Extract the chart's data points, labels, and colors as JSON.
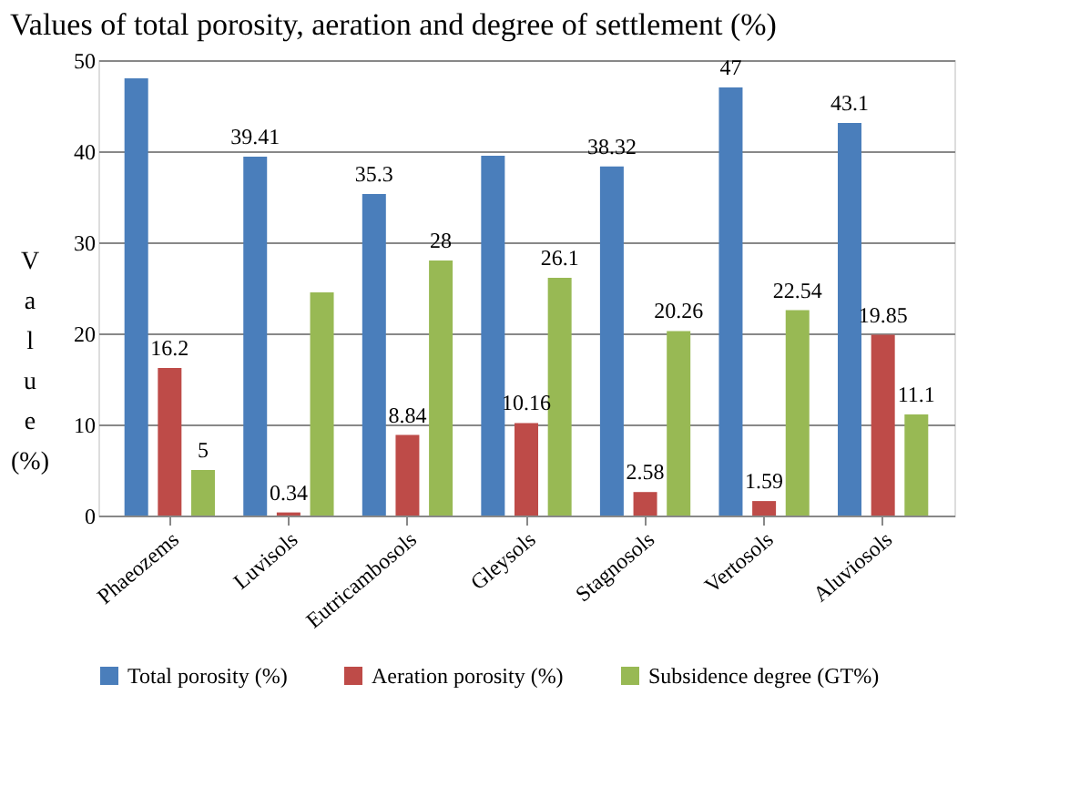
{
  "chart_data": {
    "type": "bar",
    "title": "Values of total porosity, aeration and degree of settlement (%)",
    "ylabel": "Value (%)",
    "categories": [
      "Phaeozems",
      "Luvisols",
      "Eutricambosols",
      "Gleysols",
      "Stagnosols",
      "Vertosols",
      "Aluviosols"
    ],
    "series": [
      {
        "name": "Total porosity (%)",
        "color": "#4a7ebb",
        "values": [
          48,
          39.41,
          35.3,
          39.5,
          38.32,
          47,
          43.1
        ],
        "value_labels": [
          null,
          "39.41",
          "35.3",
          null,
          "38.32",
          "47",
          "43.1"
        ]
      },
      {
        "name": "Aeration porosity (%)",
        "color": "#be4b48",
        "values": [
          16.2,
          0.34,
          8.84,
          10.16,
          2.58,
          1.59,
          19.85
        ],
        "value_labels": [
          "16.2",
          "0.34",
          "8.84",
          "10.16",
          "2.58",
          "1.59",
          "19.85"
        ]
      },
      {
        "name": "Subsidence degree (GT%)",
        "color": "#98b954",
        "values": [
          5,
          24.5,
          28,
          26.1,
          20.26,
          22.54,
          11.1
        ],
        "value_labels": [
          "5",
          null,
          "28",
          "26.1",
          "20.26",
          "22.54",
          "11.1"
        ]
      }
    ],
    "ylim": [
      0,
      50
    ],
    "yticks": [
      0,
      10,
      20,
      30,
      40,
      50
    ],
    "grid": "y",
    "legend": "bottom"
  }
}
